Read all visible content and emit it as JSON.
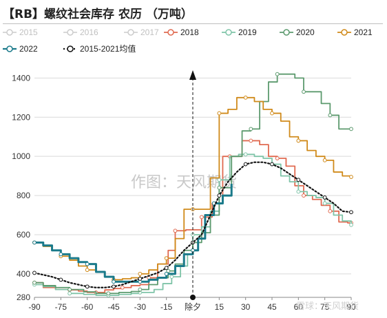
{
  "chart_data": {
    "type": "line",
    "title": "【RB】螺纹社会库存 农历 （万吨）",
    "x_ticks": [
      -90,
      -75,
      -60,
      -45,
      -30,
      -15,
      "除夕",
      15,
      30,
      45,
      60,
      75,
      90
    ],
    "y_ticks": [
      280,
      400,
      600,
      800,
      1000,
      1200,
      1400
    ],
    "ylim": [
      280,
      1440
    ],
    "xlim": [
      -90,
      90
    ],
    "grid": "horizontal",
    "legend_position": "top",
    "watermark": "作图：天风期货",
    "corner_text": "雪球：天风期货",
    "series": [
      {
        "name": "2015",
        "color": "#cccccc",
        "hidden": true,
        "points": []
      },
      {
        "name": "2016",
        "color": "#cccccc",
        "hidden": true,
        "points": []
      },
      {
        "name": "2017",
        "color": "#cccccc",
        "hidden": true,
        "points": []
      },
      {
        "name": "2018",
        "color": "#e06a50",
        "width": 1.8,
        "points": [
          [
            -90,
            355
          ],
          [
            -85,
            330
          ],
          [
            -78,
            320
          ],
          [
            -70,
            318
          ],
          [
            -65,
            312
          ],
          [
            -60,
            305
          ],
          [
            -55,
            305
          ],
          [
            -50,
            318
          ],
          [
            -45,
            325
          ],
          [
            -40,
            330
          ],
          [
            -35,
            340
          ],
          [
            -30,
            345
          ],
          [
            -25,
            380
          ],
          [
            -20,
            450
          ],
          [
            -14,
            520
          ],
          [
            -10,
            620
          ],
          [
            -4,
            625
          ],
          [
            0,
            625
          ],
          [
            5,
            690
          ],
          [
            11,
            760
          ],
          [
            17,
            1000
          ],
          [
            21,
            1000
          ],
          [
            23,
            1000
          ],
          [
            28,
            1080
          ],
          [
            33,
            1080
          ],
          [
            38,
            1060
          ],
          [
            43,
            1000
          ],
          [
            48,
            990
          ],
          [
            53,
            950
          ],
          [
            58,
            850
          ],
          [
            63,
            800
          ],
          [
            68,
            780
          ],
          [
            73,
            750
          ],
          [
            78,
            720
          ],
          [
            83,
            665
          ],
          [
            88,
            660
          ],
          [
            90,
            660
          ]
        ]
      },
      {
        "name": "2019",
        "color": "#7fc4a8",
        "width": 1.8,
        "points": [
          [
            -90,
            345
          ],
          [
            -85,
            335
          ],
          [
            -78,
            320
          ],
          [
            -70,
            300
          ],
          [
            -62,
            295
          ],
          [
            -55,
            290
          ],
          [
            -48,
            290
          ],
          [
            -42,
            295
          ],
          [
            -35,
            300
          ],
          [
            -30,
            305
          ],
          [
            -22,
            320
          ],
          [
            -17,
            350
          ],
          [
            -12,
            385
          ],
          [
            -7,
            440
          ],
          [
            -3,
            500
          ],
          [
            0,
            600
          ],
          [
            5,
            640
          ],
          [
            10,
            720
          ],
          [
            15,
            880
          ],
          [
            21,
            1000
          ],
          [
            26,
            1010
          ],
          [
            30,
            1010
          ],
          [
            35,
            1000
          ],
          [
            40,
            990
          ],
          [
            45,
            960
          ],
          [
            50,
            900
          ],
          [
            55,
            870
          ],
          [
            60,
            820
          ],
          [
            65,
            800
          ],
          [
            70,
            790
          ],
          [
            75,
            760
          ],
          [
            80,
            700
          ],
          [
            85,
            670
          ],
          [
            90,
            650
          ]
        ]
      },
      {
        "name": "2020",
        "color": "#5c9a6e",
        "width": 1.8,
        "points": [
          [
            -90,
            355
          ],
          [
            -85,
            340
          ],
          [
            -78,
            330
          ],
          [
            -70,
            320
          ],
          [
            -62,
            308
          ],
          [
            -55,
            300
          ],
          [
            -48,
            300
          ],
          [
            -42,
            305
          ],
          [
            -35,
            310
          ],
          [
            -30,
            320
          ],
          [
            -25,
            345
          ],
          [
            -20,
            380
          ],
          [
            -14,
            415
          ],
          [
            -10,
            450
          ],
          [
            -5,
            520
          ],
          [
            0,
            560
          ],
          [
            5,
            610
          ],
          [
            10,
            700
          ],
          [
            15,
            840
          ],
          [
            22,
            1000
          ],
          [
            28,
            1130
          ],
          [
            33,
            1140
          ],
          [
            38,
            1280
          ],
          [
            43,
            1380
          ],
          [
            48,
            1420
          ],
          [
            53,
            1420
          ],
          [
            58,
            1400
          ],
          [
            63,
            1330
          ],
          [
            68,
            1330
          ],
          [
            73,
            1270
          ],
          [
            78,
            1210
          ],
          [
            83,
            1140
          ],
          [
            88,
            1140
          ],
          [
            90,
            1140
          ]
        ]
      },
      {
        "name": "2021",
        "color": "#d08a1a",
        "width": 1.8,
        "points": [
          [
            -90,
            560
          ],
          [
            -85,
            540
          ],
          [
            -80,
            520
          ],
          [
            -75,
            490
          ],
          [
            -70,
            470
          ],
          [
            -65,
            440
          ],
          [
            -60,
            420
          ],
          [
            -55,
            410
          ],
          [
            -50,
            385
          ],
          [
            -45,
            370
          ],
          [
            -40,
            375
          ],
          [
            -35,
            380
          ],
          [
            -30,
            400
          ],
          [
            -25,
            420
          ],
          [
            -20,
            450
          ],
          [
            -15,
            480
          ],
          [
            -10,
            580
          ],
          [
            -5,
            730
          ],
          [
            0,
            730
          ],
          [
            5,
            730
          ],
          [
            10,
            890
          ],
          [
            15,
            1220
          ],
          [
            20,
            1240
          ],
          [
            25,
            1300
          ],
          [
            30,
            1300
          ],
          [
            35,
            1280
          ],
          [
            40,
            1240
          ],
          [
            45,
            1220
          ],
          [
            50,
            1180
          ],
          [
            55,
            1100
          ],
          [
            60,
            1080
          ],
          [
            65,
            1030
          ],
          [
            70,
            1000
          ],
          [
            75,
            980
          ],
          [
            80,
            920
          ],
          [
            85,
            900
          ],
          [
            90,
            895
          ]
        ]
      },
      {
        "name": "2022",
        "color": "#1a7a8a",
        "width": 3.0,
        "points": [
          [
            -90,
            560
          ],
          [
            -85,
            545
          ],
          [
            -80,
            520
          ],
          [
            -75,
            500
          ],
          [
            -70,
            480
          ],
          [
            -65,
            460
          ],
          [
            -60,
            450
          ],
          [
            -55,
            410
          ],
          [
            -50,
            385
          ],
          [
            -45,
            360
          ],
          [
            -40,
            360
          ],
          [
            -35,
            360
          ],
          [
            -30,
            360
          ],
          [
            -25,
            370
          ],
          [
            -20,
            380
          ],
          [
            -15,
            400
          ],
          [
            -10,
            440
          ],
          [
            -5,
            500
          ],
          [
            0,
            520
          ],
          [
            3,
            580
          ],
          [
            7,
            700
          ],
          [
            12,
            760
          ],
          [
            17,
            800
          ],
          [
            22,
            860
          ]
        ]
      },
      {
        "name": "2015-2021均值",
        "color": "#111111",
        "width": 2.2,
        "dotted": true,
        "points": [
          [
            -90,
            405
          ],
          [
            -85,
            395
          ],
          [
            -80,
            385
          ],
          [
            -75,
            370
          ],
          [
            -70,
            355
          ],
          [
            -65,
            345
          ],
          [
            -60,
            335
          ],
          [
            -55,
            330
          ],
          [
            -50,
            330
          ],
          [
            -45,
            335
          ],
          [
            -40,
            345
          ],
          [
            -35,
            360
          ],
          [
            -30,
            375
          ],
          [
            -25,
            390
          ],
          [
            -20,
            405
          ],
          [
            -15,
            430
          ],
          [
            -10,
            470
          ],
          [
            -5,
            520
          ],
          [
            0,
            560
          ],
          [
            5,
            600
          ],
          [
            10,
            700
          ],
          [
            15,
            800
          ],
          [
            20,
            870
          ],
          [
            25,
            920
          ],
          [
            30,
            960
          ],
          [
            35,
            970
          ],
          [
            40,
            970
          ],
          [
            45,
            960
          ],
          [
            50,
            940
          ],
          [
            55,
            910
          ],
          [
            60,
            880
          ],
          [
            65,
            850
          ],
          [
            70,
            820
          ],
          [
            75,
            790
          ],
          [
            80,
            760
          ],
          [
            85,
            720
          ],
          [
            90,
            715
          ]
        ]
      }
    ]
  }
}
